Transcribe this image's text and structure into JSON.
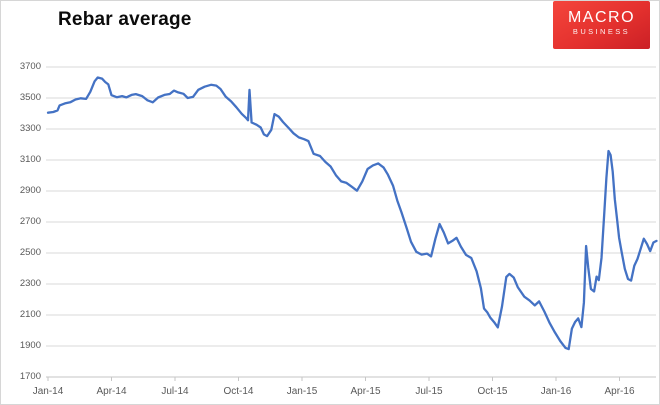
{
  "page": {
    "title": "Rebar average"
  },
  "logo": {
    "line1": "MACRO",
    "line2": "BUSINESS",
    "bg_color": "#e0312e",
    "text_color": "#ffffff"
  },
  "chart_data": {
    "type": "line",
    "title": "Rebar average",
    "series": [
      {
        "name": "Rebar average"
      }
    ],
    "xlabel": "",
    "ylabel": "",
    "ylim": [
      1700,
      3700
    ],
    "y_ticks": [
      1700,
      1900,
      2100,
      2300,
      2500,
      2700,
      2900,
      3100,
      3300,
      3500,
      3700
    ],
    "x_tick_labels": [
      "Jan-14",
      "Apr-14",
      "Jul-14",
      "Oct-14",
      "Jan-15",
      "Apr-15",
      "Jul-15",
      "Oct-15",
      "Jan-16",
      "Apr-16"
    ],
    "x_ticks_months_since_jan14": [
      0,
      3,
      6,
      9,
      12,
      15,
      18,
      21,
      24,
      27
    ],
    "grid": "horizontal-only",
    "legend": "none",
    "line_color": "#4472C4",
    "grid_color": "#d9d9d9",
    "axis_color": "#c6c6c6",
    "label_color": "#595959",
    "points_t_value": [
      [
        0.0,
        3405
      ],
      [
        0.25,
        3410
      ],
      [
        0.45,
        3420
      ],
      [
        0.55,
        3452
      ],
      [
        0.8,
        3465
      ],
      [
        1.05,
        3472
      ],
      [
        1.3,
        3490
      ],
      [
        1.55,
        3498
      ],
      [
        1.8,
        3494
      ],
      [
        2.0,
        3540
      ],
      [
        2.2,
        3608
      ],
      [
        2.35,
        3632
      ],
      [
        2.55,
        3625
      ],
      [
        2.7,
        3603
      ],
      [
        2.85,
        3588
      ],
      [
        3.0,
        3518
      ],
      [
        3.25,
        3505
      ],
      [
        3.5,
        3512
      ],
      [
        3.7,
        3504
      ],
      [
        3.95,
        3520
      ],
      [
        4.15,
        3525
      ],
      [
        4.45,
        3512
      ],
      [
        4.7,
        3485
      ],
      [
        4.95,
        3472
      ],
      [
        5.2,
        3503
      ],
      [
        5.5,
        3520
      ],
      [
        5.75,
        3526
      ],
      [
        5.95,
        3548
      ],
      [
        6.15,
        3536
      ],
      [
        6.4,
        3527
      ],
      [
        6.6,
        3500
      ],
      [
        6.85,
        3507
      ],
      [
        7.1,
        3553
      ],
      [
        7.4,
        3573
      ],
      [
        7.7,
        3585
      ],
      [
        7.95,
        3580
      ],
      [
        8.15,
        3558
      ],
      [
        8.4,
        3508
      ],
      [
        8.65,
        3478
      ],
      [
        8.9,
        3440
      ],
      [
        9.15,
        3398
      ],
      [
        9.35,
        3372
      ],
      [
        9.45,
        3356
      ],
      [
        9.52,
        3552
      ],
      [
        9.62,
        3342
      ],
      [
        9.85,
        3328
      ],
      [
        10.05,
        3310
      ],
      [
        10.2,
        3265
      ],
      [
        10.35,
        3254
      ],
      [
        10.55,
        3295
      ],
      [
        10.7,
        3396
      ],
      [
        10.9,
        3380
      ],
      [
        11.1,
        3345
      ],
      [
        11.35,
        3310
      ],
      [
        11.6,
        3272
      ],
      [
        11.85,
        3246
      ],
      [
        12.1,
        3234
      ],
      [
        12.3,
        3222
      ],
      [
        12.55,
        3140
      ],
      [
        12.85,
        3126
      ],
      [
        13.1,
        3088
      ],
      [
        13.35,
        3058
      ],
      [
        13.6,
        3002
      ],
      [
        13.85,
        2962
      ],
      [
        14.1,
        2952
      ],
      [
        14.35,
        2928
      ],
      [
        14.6,
        2902
      ],
      [
        14.85,
        2962
      ],
      [
        15.1,
        3042
      ],
      [
        15.35,
        3065
      ],
      [
        15.6,
        3078
      ],
      [
        15.85,
        3052
      ],
      [
        16.05,
        3008
      ],
      [
        16.3,
        2935
      ],
      [
        16.5,
        2838
      ],
      [
        16.7,
        2762
      ],
      [
        16.95,
        2658
      ],
      [
        17.15,
        2572
      ],
      [
        17.4,
        2508
      ],
      [
        17.65,
        2490
      ],
      [
        17.9,
        2496
      ],
      [
        18.1,
        2478
      ],
      [
        18.3,
        2592
      ],
      [
        18.5,
        2687
      ],
      [
        18.7,
        2632
      ],
      [
        18.9,
        2562
      ],
      [
        19.1,
        2578
      ],
      [
        19.3,
        2598
      ],
      [
        19.5,
        2542
      ],
      [
        19.75,
        2488
      ],
      [
        20.0,
        2468
      ],
      [
        20.25,
        2382
      ],
      [
        20.45,
        2272
      ],
      [
        20.6,
        2142
      ],
      [
        20.75,
        2118
      ],
      [
        20.9,
        2082
      ],
      [
        21.1,
        2050
      ],
      [
        21.25,
        2020
      ],
      [
        21.45,
        2155
      ],
      [
        21.65,
        2345
      ],
      [
        21.8,
        2365
      ],
      [
        22.0,
        2342
      ],
      [
        22.2,
        2278
      ],
      [
        22.5,
        2218
      ],
      [
        22.75,
        2194
      ],
      [
        23.0,
        2162
      ],
      [
        23.2,
        2188
      ],
      [
        23.45,
        2122
      ],
      [
        23.7,
        2048
      ],
      [
        23.95,
        1988
      ],
      [
        24.2,
        1932
      ],
      [
        24.45,
        1888
      ],
      [
        24.6,
        1880
      ],
      [
        24.75,
        2012
      ],
      [
        24.9,
        2055
      ],
      [
        25.05,
        2078
      ],
      [
        25.2,
        2022
      ],
      [
        25.32,
        2180
      ],
      [
        25.42,
        2545
      ],
      [
        25.52,
        2408
      ],
      [
        25.65,
        2268
      ],
      [
        25.8,
        2252
      ],
      [
        25.92,
        2348
      ],
      [
        26.02,
        2325
      ],
      [
        26.15,
        2468
      ],
      [
        26.28,
        2760
      ],
      [
        26.38,
        2985
      ],
      [
        26.48,
        3158
      ],
      [
        26.58,
        3132
      ],
      [
        26.68,
        3025
      ],
      [
        26.78,
        2848
      ],
      [
        26.88,
        2722
      ],
      [
        26.98,
        2598
      ],
      [
        27.1,
        2508
      ],
      [
        27.25,
        2398
      ],
      [
        27.4,
        2332
      ],
      [
        27.55,
        2322
      ],
      [
        27.7,
        2418
      ],
      [
        27.85,
        2462
      ],
      [
        28.0,
        2528
      ],
      [
        28.15,
        2592
      ],
      [
        28.3,
        2558
      ],
      [
        28.45,
        2512
      ],
      [
        28.6,
        2568
      ],
      [
        28.75,
        2578
      ]
    ]
  }
}
